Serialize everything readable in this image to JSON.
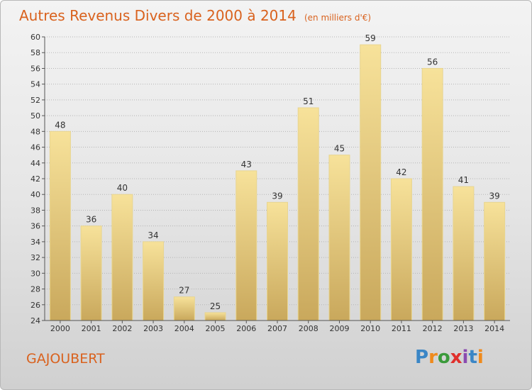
{
  "title": "Autres Revenus Divers de 2000 à 2014",
  "subtitle": "(en milliers d'€)",
  "commune": "GAJOUBERT",
  "logo": [
    "P",
    "r",
    "o",
    "x",
    "i",
    "t",
    "i"
  ],
  "colors": {
    "title": "#d9621e",
    "bar_top": "#f7e29a",
    "bar_bottom": "#c9a85c",
    "grid": "#b5b5b5"
  },
  "chart_data": {
    "type": "bar",
    "title": "Autres Revenus Divers de 2000 à 2014",
    "subtitle": "(en milliers d'€)",
    "categories": [
      "2000",
      "2001",
      "2002",
      "2003",
      "2004",
      "2005",
      "2006",
      "2007",
      "2008",
      "2009",
      "2010",
      "2011",
      "2012",
      "2013",
      "2014"
    ],
    "values": [
      48,
      36,
      40,
      34,
      27,
      25,
      43,
      39,
      51,
      45,
      59,
      42,
      56,
      41,
      39
    ],
    "ylim": [
      24,
      60
    ],
    "yticks": [
      24,
      26,
      28,
      30,
      32,
      34,
      36,
      38,
      40,
      42,
      44,
      46,
      48,
      50,
      52,
      54,
      56,
      58,
      60
    ],
    "grid": true,
    "xlabel": "",
    "ylabel": ""
  }
}
